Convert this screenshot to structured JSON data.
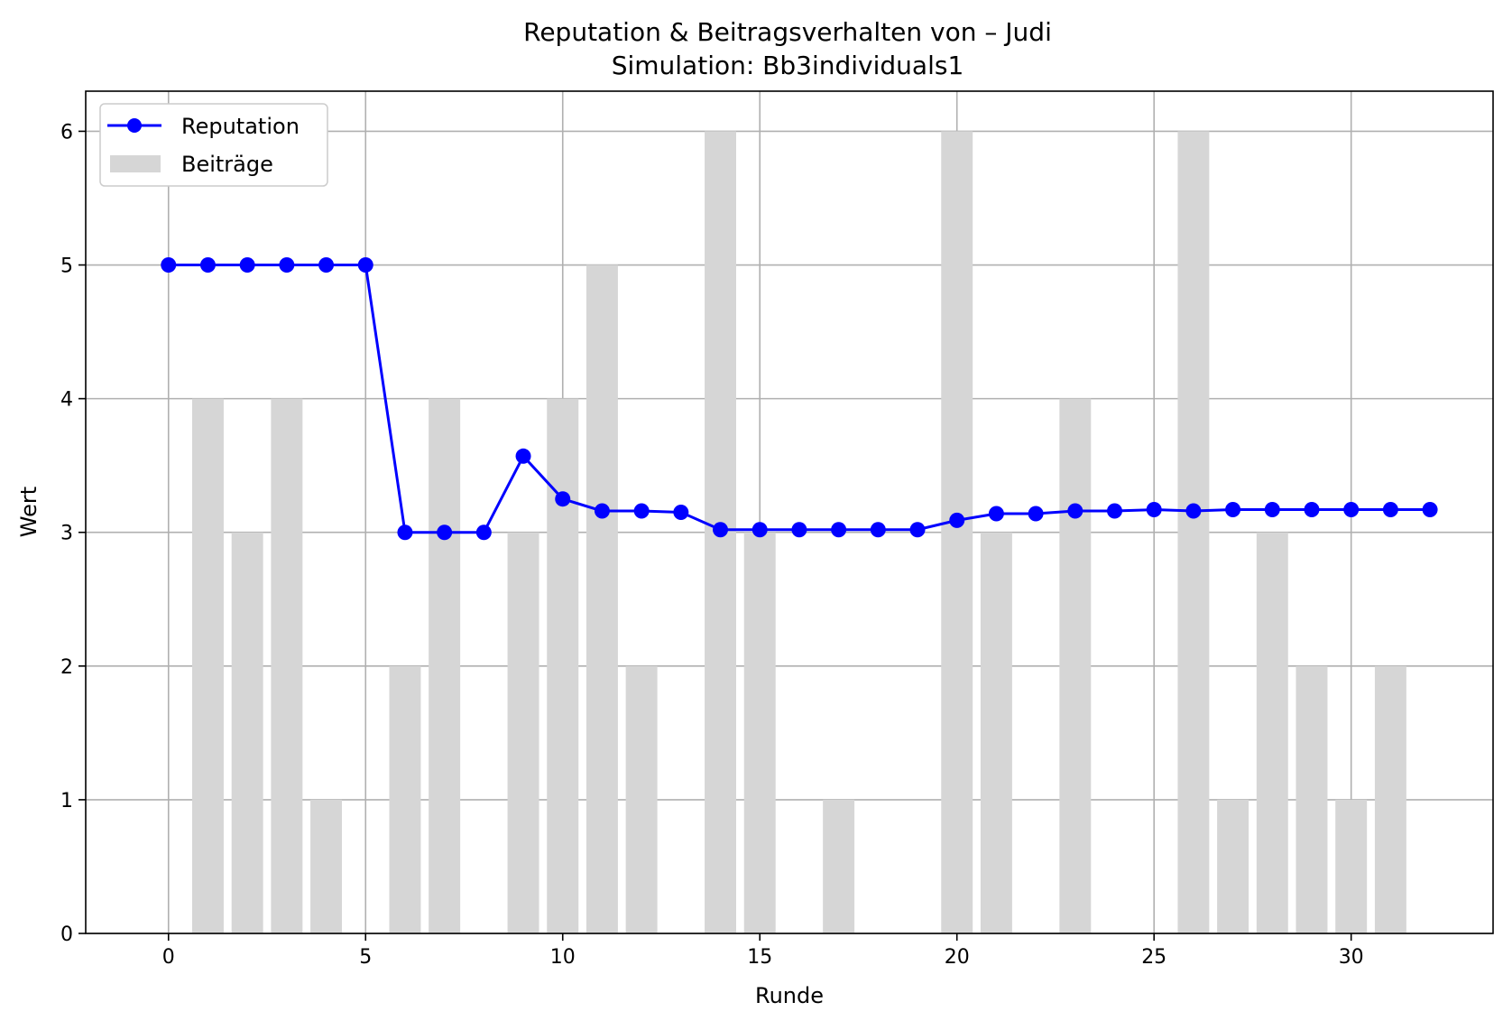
{
  "chart_data": {
    "type": "bar+line",
    "title": "Reputation & Beitragsverhalten von – Judi",
    "subtitle": "Simulation: Bb3individuals1",
    "xlabel": "Runde",
    "ylabel": "Wert",
    "xlim": [
      -2.1,
      33.6
    ],
    "ylim": [
      0,
      6.3
    ],
    "x_ticks": [
      "0",
      "5",
      "10",
      "15",
      "20",
      "25",
      "30"
    ],
    "y_ticks": [
      "0",
      "1",
      "2",
      "3",
      "4",
      "5",
      "6"
    ],
    "grid": true,
    "legend": {
      "placement": "top-left",
      "items": [
        {
          "label": "Reputation",
          "marker": "line-dot",
          "color": "#0000ff"
        },
        {
          "label": "Beiträge",
          "marker": "patch",
          "color": "#d6d6d6"
        }
      ]
    },
    "series": [
      {
        "name": "Beiträge",
        "kind": "bar",
        "color": "#d6d6d6",
        "x": [
          1,
          2,
          3,
          4,
          6,
          7,
          9,
          10,
          11,
          12,
          14,
          15,
          17,
          20,
          21,
          23,
          26,
          27,
          28,
          29,
          30,
          31
        ],
        "values": [
          4,
          3,
          4,
          1,
          2,
          4,
          3,
          4,
          5,
          2,
          6,
          3,
          1,
          6,
          3,
          4,
          6,
          1,
          3,
          2,
          1,
          2
        ]
      },
      {
        "name": "Reputation",
        "kind": "line",
        "color": "#0000ff",
        "x": [
          0,
          1,
          2,
          3,
          4,
          5,
          6,
          7,
          8,
          9,
          10,
          11,
          12,
          13,
          14,
          15,
          16,
          17,
          18,
          19,
          20,
          21,
          22,
          23,
          24,
          25,
          26,
          27,
          28,
          29,
          30,
          31,
          32
        ],
        "values": [
          5,
          5,
          5,
          5,
          5,
          5,
          3,
          3,
          3,
          3.57,
          3.25,
          3.16,
          3.16,
          3.15,
          3.02,
          3.02,
          3.02,
          3.02,
          3.02,
          3.02,
          3.09,
          3.14,
          3.14,
          3.16,
          3.16,
          3.17,
          3.16,
          3.17,
          3.17,
          3.17,
          3.17,
          3.17,
          3.17
        ]
      }
    ]
  }
}
